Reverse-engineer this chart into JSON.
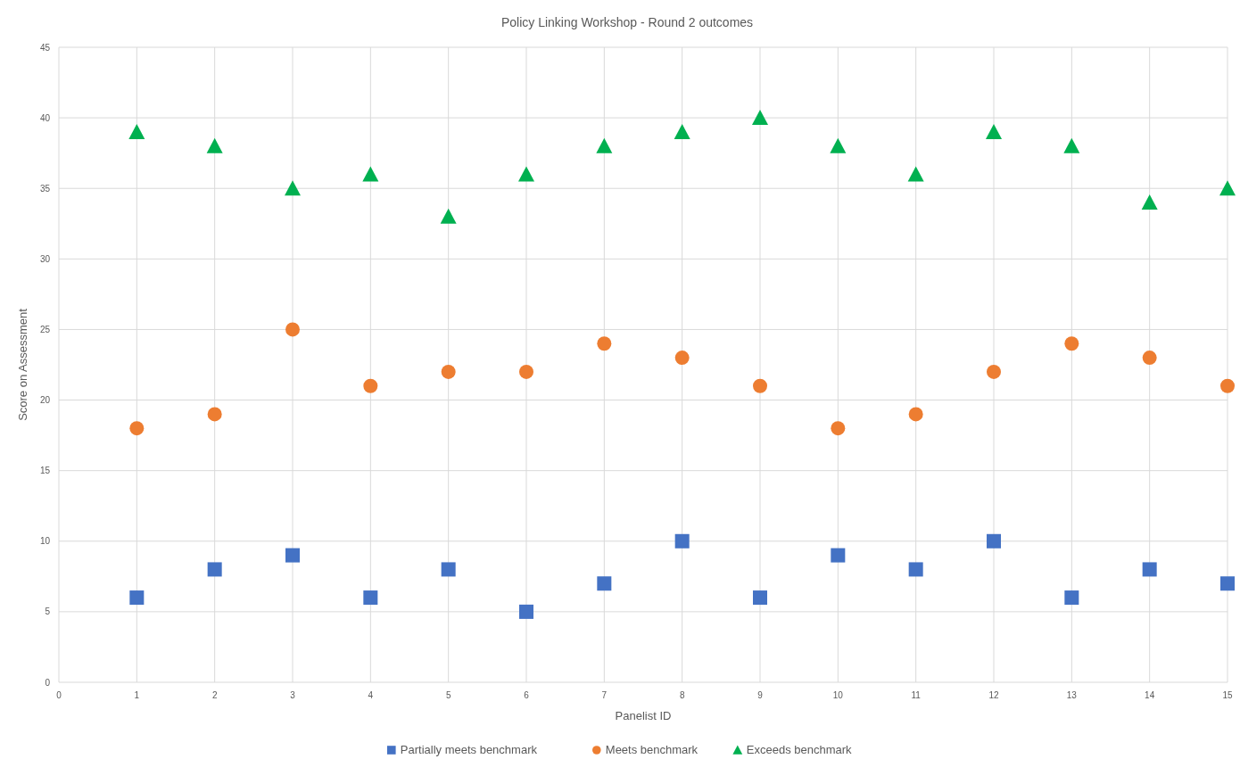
{
  "chart_data": {
    "type": "scatter",
    "title": "Policy Linking Workshop - Round 2 outcomes",
    "xlabel": "Panelist ID",
    "ylabel": "Score on Assessment",
    "x": [
      1,
      2,
      3,
      4,
      5,
      6,
      7,
      8,
      9,
      10,
      11,
      12,
      13,
      14,
      15
    ],
    "series": [
      {
        "name": "Partially meets benchmark",
        "color": "#4472c4",
        "marker": "square",
        "values": [
          6,
          8,
          9,
          6,
          8,
          5,
          7,
          10,
          6,
          9,
          8,
          10,
          6,
          8,
          7
        ]
      },
      {
        "name": "Meets benchmark",
        "color": "#ed7d31",
        "marker": "circle",
        "values": [
          18,
          19,
          25,
          21,
          22,
          22,
          24,
          23,
          21,
          18,
          19,
          22,
          24,
          23,
          21
        ]
      },
      {
        "name": "Exceeds benchmark",
        "color": "#00b050",
        "marker": "triangle",
        "values": [
          39,
          38,
          35,
          36,
          33,
          36,
          38,
          39,
          40,
          38,
          36,
          39,
          38,
          34,
          35
        ]
      }
    ],
    "xlim": [
      0,
      15
    ],
    "xticks": [
      0,
      1,
      2,
      3,
      4,
      5,
      6,
      7,
      8,
      9,
      10,
      11,
      12,
      13,
      14,
      15
    ],
    "ylim": [
      0,
      45
    ],
    "yticks": [
      0,
      5,
      10,
      15,
      20,
      25,
      30,
      35,
      40,
      45
    ],
    "grid": true,
    "legend": "bottom"
  }
}
